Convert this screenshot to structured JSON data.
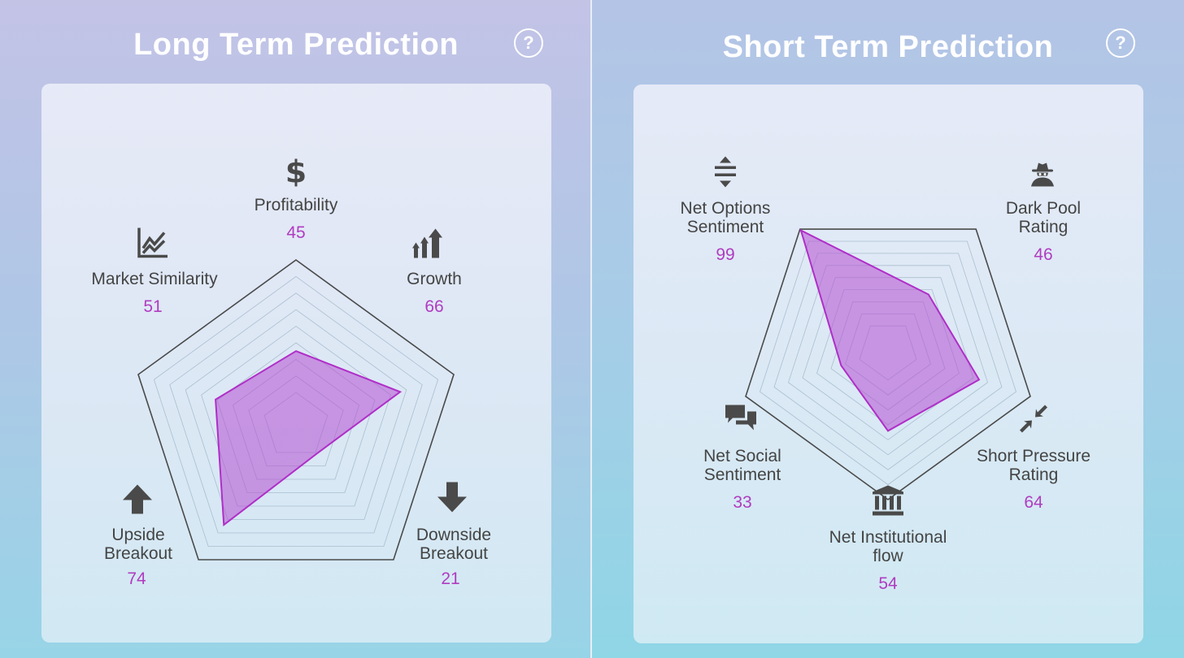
{
  "panels": [
    {
      "title": "Long Term Prediction",
      "help_label": "?",
      "chart_data": {
        "type": "radar",
        "title": "Long Term Prediction",
        "range": [
          0,
          100
        ],
        "axes": [
          {
            "label": "Profitability",
            "value": 45,
            "icon": "dollar-icon"
          },
          {
            "label": "Growth",
            "value": 66,
            "icon": "growth-arrows-icon"
          },
          {
            "label": "Downside Breakout",
            "value": 21,
            "icon": "arrow-down-icon"
          },
          {
            "label": "Upside Breakout",
            "value": 74,
            "icon": "arrow-up-icon"
          },
          {
            "label": "Market Similarity",
            "value": 51,
            "icon": "line-chart-icon"
          }
        ]
      }
    },
    {
      "title": "Short Term Prediction",
      "help_label": "?",
      "chart_data": {
        "type": "radar",
        "title": "Short Term Prediction",
        "range": [
          0,
          100
        ],
        "axes": [
          {
            "label": "Dark Pool Rating",
            "value": 46,
            "icon": "spy-icon"
          },
          {
            "label": "Short Pressure Rating",
            "value": 64,
            "icon": "compress-arrows-icon"
          },
          {
            "label": "Net Institutional flow",
            "value": 54,
            "icon": "institution-icon"
          },
          {
            "label": "Net Social Sentiment",
            "value": 33,
            "icon": "chat-bubbles-icon"
          },
          {
            "label": "Net Options Sentiment",
            "value": 99,
            "icon": "expand-vertical-icon"
          }
        ]
      }
    }
  ],
  "colors": {
    "fill": "#b44fd2",
    "stroke": "#b02ec8",
    "value_text": "#b03cc0",
    "outline": "#4a4a4a",
    "grid": "#9fb3c4"
  }
}
